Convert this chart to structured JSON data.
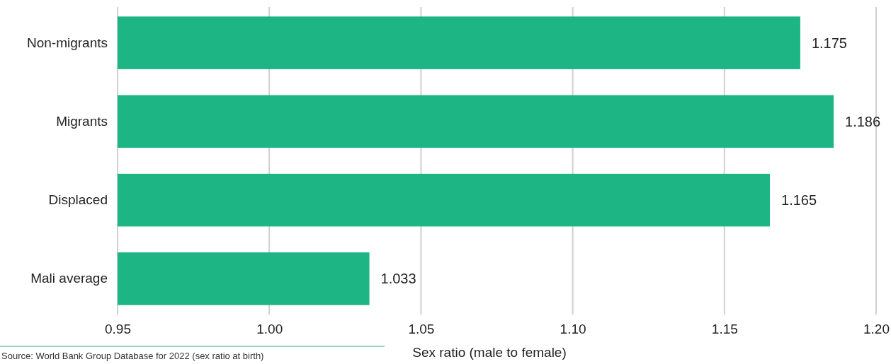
{
  "chart_data": {
    "type": "bar",
    "orientation": "horizontal",
    "categories": [
      "Non-migrants",
      "Migrants",
      "Displaced",
      "Mali average"
    ],
    "values": [
      1.175,
      1.186,
      1.165,
      1.033
    ],
    "color": "#1db584",
    "xlim": [
      0.95,
      1.2
    ],
    "xticks": [
      {
        "value": 0.95,
        "label": "0.95"
      },
      {
        "value": 1.0,
        "label": "1.00"
      },
      {
        "value": 1.05,
        "label": "1.05"
      },
      {
        "value": 1.1,
        "label": "1.10"
      },
      {
        "value": 1.15,
        "label": "1.15"
      },
      {
        "value": 1.2,
        "label": "1.20"
      }
    ],
    "xlabel": "Sex ratio (male to female)",
    "grid": "x",
    "data_labels": true,
    "annotations": [
      "Source: World Bank Group Database for 2022 (sex ratio at birth)"
    ]
  }
}
